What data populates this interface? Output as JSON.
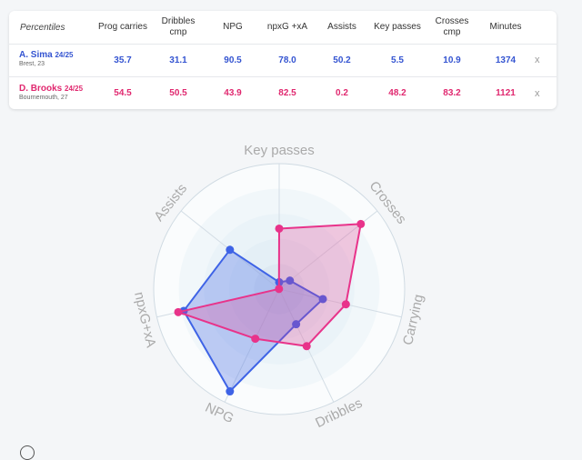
{
  "table": {
    "header_label": "Percentiles",
    "columns": [
      "Prog carries",
      "Dribbles\ncmp",
      "NPG",
      "npxG +xA",
      "Assists",
      "Key passes",
      "Crosses\ncmp",
      "Minutes"
    ],
    "close_symbol": "x",
    "players": [
      {
        "name": "A. Sima",
        "season": "24/25",
        "club_age": "Brest, 23",
        "color": "#3454d1",
        "values": [
          "35.7",
          "31.1",
          "90.5",
          "78.0",
          "50.2",
          "5.5",
          "10.9",
          "1374"
        ]
      },
      {
        "name": "D. Brooks",
        "season": "24/25",
        "club_age": "Bournemouth, 27",
        "color": "#e0286f",
        "values": [
          "54.5",
          "50.5",
          "43.9",
          "82.5",
          "0.2",
          "48.2",
          "83.2",
          "1121"
        ]
      }
    ]
  },
  "radar": {
    "axes": [
      "Key passes",
      "Crosses",
      "Carrying",
      "Dribbles",
      "NPG",
      "npxG+xA",
      "Assists"
    ],
    "range": [
      0,
      100
    ],
    "series": [
      {
        "color": "#3e63e6",
        "values": [
          5.5,
          10.9,
          35.7,
          31.1,
          90.5,
          78.0,
          50.2
        ]
      },
      {
        "color": "#e8338a",
        "values": [
          48.2,
          83.2,
          54.5,
          50.5,
          43.9,
          82.5,
          0.2
        ]
      }
    ]
  }
}
